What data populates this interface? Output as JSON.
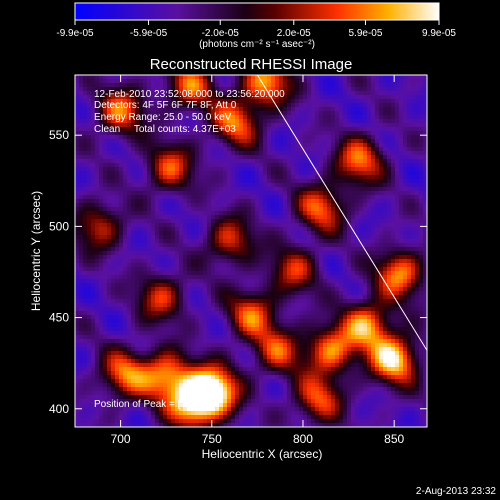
{
  "chart_data": {
    "type": "heatmap",
    "title": "Reconstructed RHESSI Image",
    "xlabel": "Heliocentric X (arcsec)",
    "ylabel": "Heliocentric Y (arcsec)",
    "xlim": [
      675,
      868
    ],
    "ylim": [
      390,
      583
    ],
    "x_ticks": [
      700,
      750,
      800,
      850
    ],
    "y_ticks": [
      400,
      450,
      500,
      550
    ],
    "colorbar": {
      "min": -9.9e-05,
      "max": 9.9e-05,
      "tick_labels": [
        "-9.9e-05",
        "-5.9e-05",
        "-2.0e-05",
        "2.0e-05",
        "5.9e-05",
        "9.9e-05"
      ],
      "tick_values": [
        -9.9e-05,
        -5.9e-05,
        -2e-05,
        2e-05,
        5.9e-05,
        9.9e-05
      ],
      "units": "(photons cm⁻² s⁻¹ asec⁻²)"
    },
    "annotations": [
      "12-Feb-2010 23:52:08.000 to 23:56:20.000",
      "Detectors: 4F 5F 6F 7F 8F, Att 0",
      "Energy Range: 25.0 - 50.0 keV",
      "Clean     Total counts: 4.37E+03"
    ],
    "peak_label": "Position of Peak = [751,410]",
    "peak_position": [
      751,
      410
    ],
    "limb_line": {
      "x": [
        775,
        868
      ],
      "y": [
        583,
        432
      ]
    },
    "sources": [
      {
        "x": 751,
        "y": 410,
        "value": 9.9e-05
      },
      {
        "x": 740,
        "y": 403,
        "value": 8.8e-05
      },
      {
        "x": 725,
        "y": 418,
        "value": 6.5e-05
      },
      {
        "x": 702,
        "y": 419,
        "value": 5e-05
      },
      {
        "x": 850,
        "y": 427,
        "value": 8.7e-05
      },
      {
        "x": 835,
        "y": 446,
        "value": 6.3e-05
      },
      {
        "x": 815,
        "y": 432,
        "value": 5.8e-05
      },
      {
        "x": 853,
        "y": 474,
        "value": 6e-05
      },
      {
        "x": 808,
        "y": 405,
        "value": 4.2e-05
      },
      {
        "x": 831,
        "y": 536,
        "value": 5.2e-05
      },
      {
        "x": 810,
        "y": 510,
        "value": 4.6e-05
      },
      {
        "x": 763,
        "y": 557,
        "value": 5e-05
      },
      {
        "x": 780,
        "y": 579,
        "value": 6.4e-05
      },
      {
        "x": 738,
        "y": 577,
        "value": 4.3e-05
      },
      {
        "x": 700,
        "y": 563,
        "value": 4.8e-05
      },
      {
        "x": 727,
        "y": 532,
        "value": 4e-05
      },
      {
        "x": 772,
        "y": 452,
        "value": 4.4e-05
      },
      {
        "x": 722,
        "y": 461,
        "value": 3.2e-05
      },
      {
        "x": 760,
        "y": 492,
        "value": 3.5e-05
      },
      {
        "x": 688,
        "y": 500,
        "value": 3e-05
      },
      {
        "x": 795,
        "y": 476,
        "value": 2.8e-05
      },
      {
        "x": 786,
        "y": 432,
        "value": 3.3e-05
      }
    ],
    "background": -4.8e-05
  },
  "footer": {
    "date": "2-Aug-2013 23:32"
  }
}
